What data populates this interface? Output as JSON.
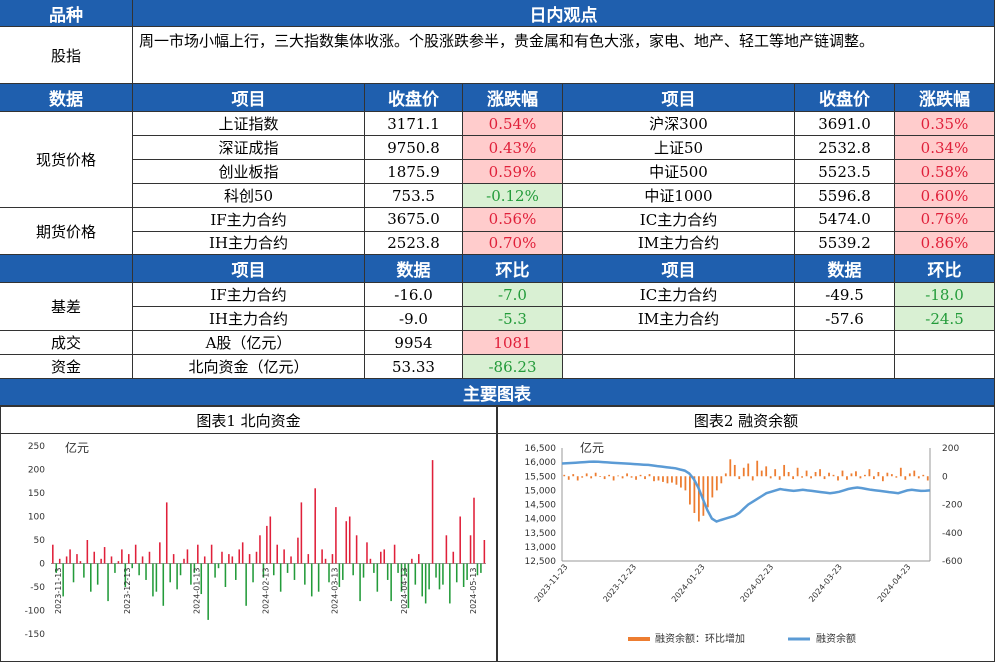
{
  "top": {
    "col1": "品种",
    "col2": "日内观点"
  },
  "index_row": {
    "label": "股指",
    "text": "周一市场小幅上行，三大指数集体收涨。个股涨跌参半，贵金属和有色大涨，家电、地产、轻工等地产链调整。"
  },
  "header1": {
    "c1": "数据",
    "c2": "项目",
    "c3": "收盘价",
    "c4": "涨跌幅",
    "c5": "项目",
    "c6": "收盘价",
    "c7": "涨跌幅"
  },
  "spot": {
    "label": "现货价格",
    "rows": [
      {
        "l_name": "上证指数",
        "l_price": "3171.1",
        "l_chg": "0.54%",
        "r_name": "沪深300",
        "r_price": "3691.0",
        "r_chg": "0.35%"
      },
      {
        "l_name": "深证成指",
        "l_price": "9750.8",
        "l_chg": "0.43%",
        "r_name": "上证50",
        "r_price": "2532.8",
        "r_chg": "0.34%"
      },
      {
        "l_name": "创业板指",
        "l_price": "1875.9",
        "l_chg": "0.59%",
        "r_name": "中证500",
        "r_price": "5523.5",
        "r_chg": "0.58%"
      },
      {
        "l_name": "科创50",
        "l_price": "753.5",
        "l_chg": "-0.12%",
        "r_name": "中证1000",
        "r_price": "5596.8",
        "r_chg": "0.60%"
      }
    ]
  },
  "futures": {
    "label": "期货价格",
    "rows": [
      {
        "l_name": "IF主力合约",
        "l_price": "3675.0",
        "l_chg": "0.56%",
        "r_name": "IC主力合约",
        "r_price": "5474.0",
        "r_chg": "0.76%"
      },
      {
        "l_name": "IH主力合约",
        "l_price": "2523.8",
        "l_chg": "0.70%",
        "r_name": "IM主力合约",
        "r_price": "5539.2",
        "r_chg": "0.86%"
      }
    ]
  },
  "header2": {
    "c2": "项目",
    "c3": "数据",
    "c4": "环比",
    "c5": "项目",
    "c6": "数据",
    "c7": "环比"
  },
  "basis": {
    "label": "基差",
    "rows": [
      {
        "l_name": "IF主力合约",
        "l_val": "-16.0",
        "l_chg": "-7.0",
        "r_name": "IC主力合约",
        "r_val": "-49.5",
        "r_chg": "-18.0"
      },
      {
        "l_name": "IH主力合约",
        "l_val": "-9.0",
        "l_chg": "-5.3",
        "r_name": "IM主力合约",
        "r_val": "-57.6",
        "r_chg": "-24.5"
      }
    ]
  },
  "turnover": {
    "label": "成交",
    "name": "A股（亿元）",
    "val": "9954",
    "chg": "1081"
  },
  "funds": {
    "label": "资金",
    "name": "北向资金（亿元）",
    "val": "53.33",
    "chg": "-86.23"
  },
  "charts_header": "主要图表",
  "colors": {
    "header": "#1f5fae",
    "up": "#e0203a",
    "down": "#239b3a",
    "up_bg": "#ffcccc",
    "down_bg": "#d9f0d3",
    "bar": "#ed7d31",
    "line": "#5b9bd5"
  },
  "chart_data": [
    {
      "type": "bar",
      "title": "图表1  北向资金",
      "ylabel": "亿元",
      "ylim": [
        -150,
        250
      ],
      "yticks": [
        "250",
        "200",
        "150",
        "100",
        "50",
        "0",
        "-50",
        "-100",
        "-150"
      ],
      "xticks": [
        "2023-11-13",
        "2023-12-13",
        "2024-01-13",
        "2024-02-13",
        "2024-03-13",
        "2024-04-13",
        "2024-05-13"
      ],
      "values": [
        40,
        -20,
        10,
        -70,
        15,
        30,
        -40,
        20,
        5,
        -30,
        50,
        -60,
        25,
        -45,
        10,
        35,
        -80,
        15,
        -20,
        5,
        30,
        -50,
        20,
        -10,
        40,
        -25,
        15,
        -35,
        25,
        -70,
        -60,
        45,
        -90,
        130,
        -40,
        20,
        -55,
        -25,
        10,
        30,
        -45,
        -20,
        40,
        -65,
        15,
        -120,
        40,
        -30,
        -10,
        25,
        -50,
        20,
        15,
        -35,
        30,
        45,
        -90,
        20,
        -40,
        25,
        60,
        -30,
        80,
        100,
        -25,
        40,
        -60,
        30,
        -20,
        15,
        -35,
        55,
        130,
        -45,
        20,
        -70,
        160,
        -60,
        30,
        10,
        -40,
        20,
        120,
        -50,
        -35,
        90,
        100,
        -25,
        60,
        -80,
        -30,
        45,
        10,
        -20,
        -60,
        25,
        30,
        -35,
        -80,
        40,
        -20,
        -60,
        -25,
        -95,
        10,
        -45,
        20,
        -70,
        -85,
        -55,
        220,
        -30,
        -55,
        -45,
        60,
        -85,
        25,
        -40,
        100,
        -50,
        -35,
        60,
        140,
        -25,
        -20,
        50
      ]
    },
    {
      "type": "bar+line",
      "title": "图表2  融资余额",
      "ylabel": "亿元",
      "ylim_left": [
        12500,
        16500
      ],
      "ylim_right": [
        -600,
        200
      ],
      "yticks_left": [
        "16,500",
        "16,000",
        "15,500",
        "15,000",
        "14,500",
        "14,000",
        "13,500",
        "13,000",
        "12,500"
      ],
      "yticks_right": [
        "200",
        "0",
        "-200",
        "-400",
        "-600"
      ],
      "xticks": [
        "2023-11-23",
        "2023-12-23",
        "2024-01-23",
        "2024-02-23",
        "2024-03-23",
        "2024-04-23"
      ],
      "legend": [
        {
          "name": "融资余额：环比增加"
        },
        {
          "name": "融资余额"
        }
      ],
      "legend_placement": "bottom",
      "line_values": [
        15950,
        15960,
        15970,
        15980,
        15990,
        16000,
        16010,
        16020,
        16010,
        16000,
        15990,
        15980,
        15970,
        15960,
        15950,
        15940,
        15930,
        15920,
        15910,
        15900,
        15880,
        15860,
        15840,
        15820,
        15800,
        15780,
        15740,
        15700,
        15600,
        15400,
        15100,
        14700,
        14300,
        14000,
        13900,
        13950,
        14000,
        14050,
        14100,
        14200,
        14350,
        14500,
        14600,
        14700,
        14800,
        14900,
        14950,
        15000,
        15050,
        15020,
        15000,
        14980,
        15000,
        15020,
        15000,
        14980,
        14960,
        14940,
        14920,
        14900,
        14920,
        14950,
        15000,
        15050,
        15080,
        15100,
        15080,
        15050,
        15020,
        15000,
        14980,
        14960,
        14940,
        14920,
        14900,
        14950,
        15000,
        15020,
        15000,
        14980,
        14990,
        15000
      ],
      "bar_values": [
        10,
        -25,
        15,
        -30,
        -10,
        20,
        -15,
        25,
        -5,
        -20,
        10,
        -30,
        5,
        -15,
        20,
        -10,
        -25,
        10,
        -20,
        15,
        -35,
        -30,
        -40,
        -50,
        -45,
        -60,
        -80,
        -100,
        -200,
        -260,
        -320,
        -280,
        -220,
        -150,
        -100,
        -50,
        20,
        120,
        80,
        -20,
        60,
        90,
        -30,
        110,
        40,
        70,
        -15,
        50,
        -25,
        80,
        30,
        -20,
        60,
        -10,
        40,
        -15,
        30,
        50,
        -20,
        25,
        10,
        -30,
        40,
        -25,
        20,
        35,
        -15,
        10,
        50,
        -20,
        30,
        -35,
        25,
        15,
        -10,
        60,
        -25,
        20,
        40,
        -15,
        10,
        -30
      ]
    }
  ]
}
